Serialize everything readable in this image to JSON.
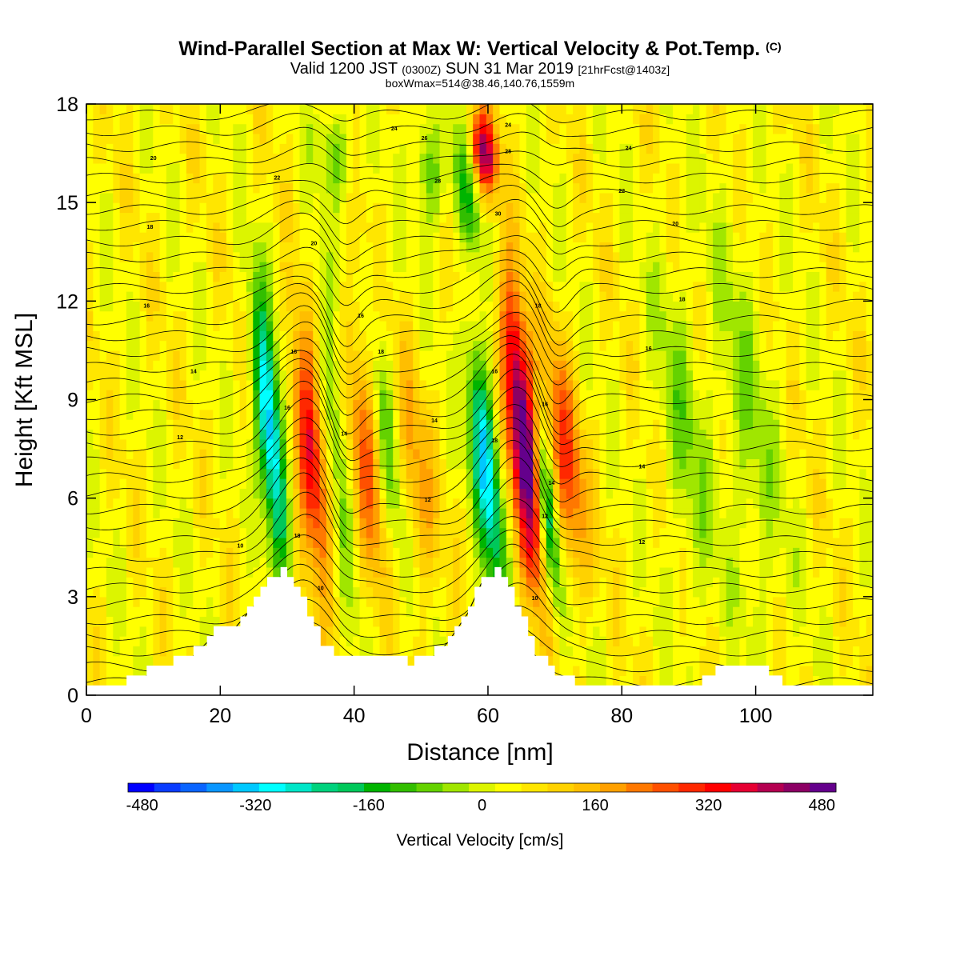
{
  "chart_data": {
    "type": "heatmap",
    "title": "Wind-Parallel Section at Max W: Vertical Velocity & Pot.Temp.",
    "title_mark": "(C)",
    "subtitle": {
      "valid": "Valid 1200 JST",
      "utc": "(0300Z)",
      "date": "SUN 31 Mar 2019",
      "forecast": "[21hrFcst@1403z]"
    },
    "subtitle2": "boxWmax=514@38.46,140.76,1559m",
    "xlabel": "Distance [nm]",
    "ylabel": "Height [Kft MSL]",
    "xlim": [
      0,
      117.5
    ],
    "ylim": [
      0,
      18
    ],
    "x_ticks": [
      "0",
      "20",
      "40",
      "60",
      "80",
      "100"
    ],
    "y_ticks": [
      "0",
      "3",
      "6",
      "9",
      "12",
      "15",
      "18"
    ],
    "colorbar": {
      "title": "Vertical Velocity [cm/s]",
      "range": [
        -500,
        500
      ],
      "tick_labels": [
        "-480",
        "-320",
        "-160",
        "0",
        "160",
        "320",
        "480"
      ],
      "colors": [
        "#0000ff",
        "#0a3cff",
        "#0a64ff",
        "#0a96ff",
        "#00c8ff",
        "#00ffff",
        "#00e6c8",
        "#00d27d",
        "#00c85a",
        "#00b400",
        "#32be00",
        "#64d200",
        "#a0e600",
        "#dcf500",
        "#ffff00",
        "#ffe600",
        "#ffd200",
        "#ffbe00",
        "#ffa000",
        "#ff7800",
        "#ff5000",
        "#ff2800",
        "#ff0000",
        "#e60032",
        "#b40050",
        "#8c0064",
        "#64008c"
      ]
    },
    "vertical_velocity_features": [
      {
        "x_center": 29.5,
        "y_range": [
          3.5,
          12.5
        ],
        "peak": -420,
        "half_width": 1.3
      },
      {
        "x_center": 35.5,
        "y_range": [
          3.0,
          11.5
        ],
        "peak": 340,
        "half_width": 1.6
      },
      {
        "x_center": 39.5,
        "y_range": [
          3.0,
          13.0
        ],
        "peak": -150,
        "half_width": 1.3
      },
      {
        "x_center": 44.0,
        "y_range": [
          3.0,
          12.0
        ],
        "peak": 210,
        "half_width": 1.8
      },
      {
        "x_center": 47.0,
        "y_range": [
          3.0,
          12.0
        ],
        "peak": -150,
        "half_width": 1.5
      },
      {
        "x_center": 51.0,
        "y_range": [
          2.5,
          11.0
        ],
        "peak": 130,
        "half_width": 2.0
      },
      {
        "x_center": 61.5,
        "y_range": [
          3.0,
          11.0
        ],
        "peak": -380,
        "half_width": 1.4
      },
      {
        "x_center": 67.5,
        "y_range": [
          3.0,
          13.0
        ],
        "peak": 500,
        "half_width": 1.6
      },
      {
        "x_center": 70.5,
        "y_range": [
          2.0,
          8.5
        ],
        "peak": -300,
        "half_width": 1.0
      },
      {
        "x_center": 73.5,
        "y_range": [
          3.0,
          11.0
        ],
        "peak": 230,
        "half_width": 1.8
      },
      {
        "x_center": 60.0,
        "y_range": [
          15.0,
          18.0
        ],
        "peak": 380,
        "half_width": 1.5
      },
      {
        "x_center": 58.0,
        "y_range": [
          13.0,
          18.0
        ],
        "peak": -160,
        "half_width": 1.5
      },
      {
        "x_center": 52.0,
        "y_range": [
          14.0,
          18.0
        ],
        "peak": -140,
        "half_width": 1.5
      },
      {
        "x_center": 38.0,
        "y_range": [
          15.0,
          18.0
        ],
        "peak": -120,
        "half_width": 1.8
      },
      {
        "x_center": 92.0,
        "y_range": [
          2.0,
          14.0
        ],
        "peak": -90,
        "half_width": 2.5
      },
      {
        "x_center": 102.0,
        "y_range": [
          1.0,
          15.0
        ],
        "peak": -80,
        "half_width": 3.0
      }
    ],
    "terrain": {
      "x": [
        0,
        4,
        7,
        10,
        15,
        19,
        22,
        25,
        27.5,
        29.5,
        31,
        33,
        35,
        37,
        40,
        45,
        48,
        51,
        54,
        57,
        59,
        61,
        63,
        65,
        67,
        70,
        75,
        80,
        90,
        95,
        100,
        105,
        110,
        117.5
      ],
      "height": [
        0.3,
        0.3,
        0.6,
        0.9,
        1.2,
        2.0,
        2.2,
        2.9,
        3.6,
        3.8,
        3.3,
        2.5,
        1.5,
        1.2,
        1.2,
        1.2,
        1.0,
        1.2,
        1.8,
        2.7,
        3.6,
        3.8,
        3.2,
        2.4,
        1.3,
        0.6,
        0.3,
        0.3,
        0.3,
        0.9,
        0.9,
        0.3,
        0.3,
        0.3
      ]
    },
    "potential_temperature_contours": {
      "levels": [
        2,
        3,
        4,
        5,
        6,
        7,
        8,
        9,
        10,
        11,
        12,
        13,
        14,
        15,
        16,
        17,
        18,
        19,
        20,
        21,
        22,
        23,
        24,
        25,
        26,
        27,
        28,
        29,
        30,
        31,
        32,
        33,
        34,
        35,
        36,
        37,
        38
      ],
      "labels": [
        {
          "text": "10",
          "x": 23,
          "y": 4.5
        },
        {
          "text": "12",
          "x": 14,
          "y": 7.8
        },
        {
          "text": "14",
          "x": 16,
          "y": 9.8
        },
        {
          "text": "16",
          "x": 9,
          "y": 11.8
        },
        {
          "text": "18",
          "x": 9.5,
          "y": 14.2
        },
        {
          "text": "20",
          "x": 10,
          "y": 16.3
        },
        {
          "text": "10",
          "x": 35,
          "y": 3.2
        },
        {
          "text": "12",
          "x": 51,
          "y": 5.9
        },
        {
          "text": "14",
          "x": 52,
          "y": 8.3
        },
        {
          "text": "16",
          "x": 41,
          "y": 11.5
        },
        {
          "text": "18",
          "x": 44,
          "y": 10.4
        },
        {
          "text": "20",
          "x": 34,
          "y": 13.7
        },
        {
          "text": "22",
          "x": 28.5,
          "y": 15.7
        },
        {
          "text": "24",
          "x": 46,
          "y": 17.2
        },
        {
          "text": "26",
          "x": 50.5,
          "y": 16.9
        },
        {
          "text": "28",
          "x": 52.5,
          "y": 15.6
        },
        {
          "text": "30",
          "x": 61.5,
          "y": 14.6
        },
        {
          "text": "10",
          "x": 67,
          "y": 2.9
        },
        {
          "text": "12",
          "x": 68.5,
          "y": 5.4
        },
        {
          "text": "14",
          "x": 69.5,
          "y": 6.4
        },
        {
          "text": "16",
          "x": 68.5,
          "y": 8.8
        },
        {
          "text": "18",
          "x": 61,
          "y": 7.7
        },
        {
          "text": "16",
          "x": 61,
          "y": 9.8
        },
        {
          "text": "18",
          "x": 67.5,
          "y": 11.8
        },
        {
          "text": "24",
          "x": 63,
          "y": 17.3
        },
        {
          "text": "28",
          "x": 63,
          "y": 16.5
        },
        {
          "text": "24",
          "x": 81,
          "y": 16.6
        },
        {
          "text": "22",
          "x": 80,
          "y": 15.3
        },
        {
          "text": "20",
          "x": 88,
          "y": 14.3
        },
        {
          "text": "18",
          "x": 89,
          "y": 12.0
        },
        {
          "text": "16",
          "x": 84,
          "y": 10.5
        },
        {
          "text": "14",
          "x": 83,
          "y": 6.9
        },
        {
          "text": "12",
          "x": 83,
          "y": 4.6
        },
        {
          "text": "16",
          "x": 31,
          "y": 10.4
        },
        {
          "text": "16",
          "x": 30,
          "y": 8.7
        },
        {
          "text": "18",
          "x": 31.5,
          "y": 4.8
        },
        {
          "text": "14",
          "x": 38.5,
          "y": 7.9
        }
      ]
    }
  }
}
